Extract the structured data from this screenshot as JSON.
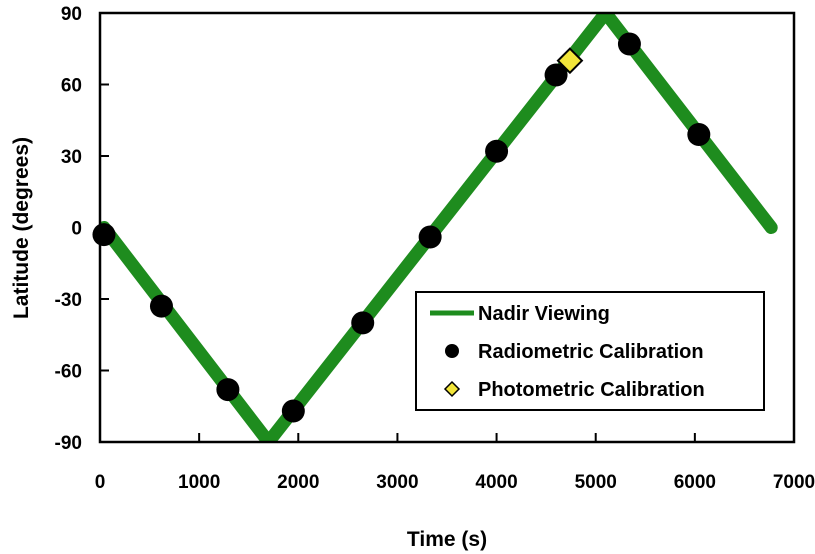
{
  "chart_data": {
    "type": "line",
    "title": "",
    "xlabel": "Time (s)",
    "ylabel": "Latitude (degrees)",
    "xlim": [
      0,
      7000
    ],
    "ylim": [
      -90,
      90
    ],
    "xticks": [
      0,
      1000,
      2000,
      3000,
      4000,
      5000,
      6000,
      7000
    ],
    "yticks": [
      90,
      60,
      30,
      0,
      -30,
      -60,
      -90
    ],
    "grid": false,
    "legend_position": "bottom-right",
    "series": [
      {
        "name": "Nadir Viewing",
        "kind": "line",
        "color": "#1e8c1e",
        "x": [
          40,
          1700,
          5100,
          6770
        ],
        "y": [
          0,
          -90,
          90,
          0
        ]
      },
      {
        "name": "Radiometric Calibration",
        "kind": "scatter",
        "marker": "circle",
        "color": "#000000",
        "x": [
          40,
          620,
          1290,
          1950,
          2650,
          3330,
          4000,
          4600,
          5340,
          6040
        ],
        "y": [
          -3,
          -33,
          -68,
          -77,
          -40,
          -4,
          32,
          64,
          77,
          39
        ]
      },
      {
        "name": "Photometric Calibration",
        "kind": "scatter",
        "marker": "diamond",
        "color": "#f2e53a",
        "x": [
          4740
        ],
        "y": [
          70
        ]
      }
    ]
  }
}
